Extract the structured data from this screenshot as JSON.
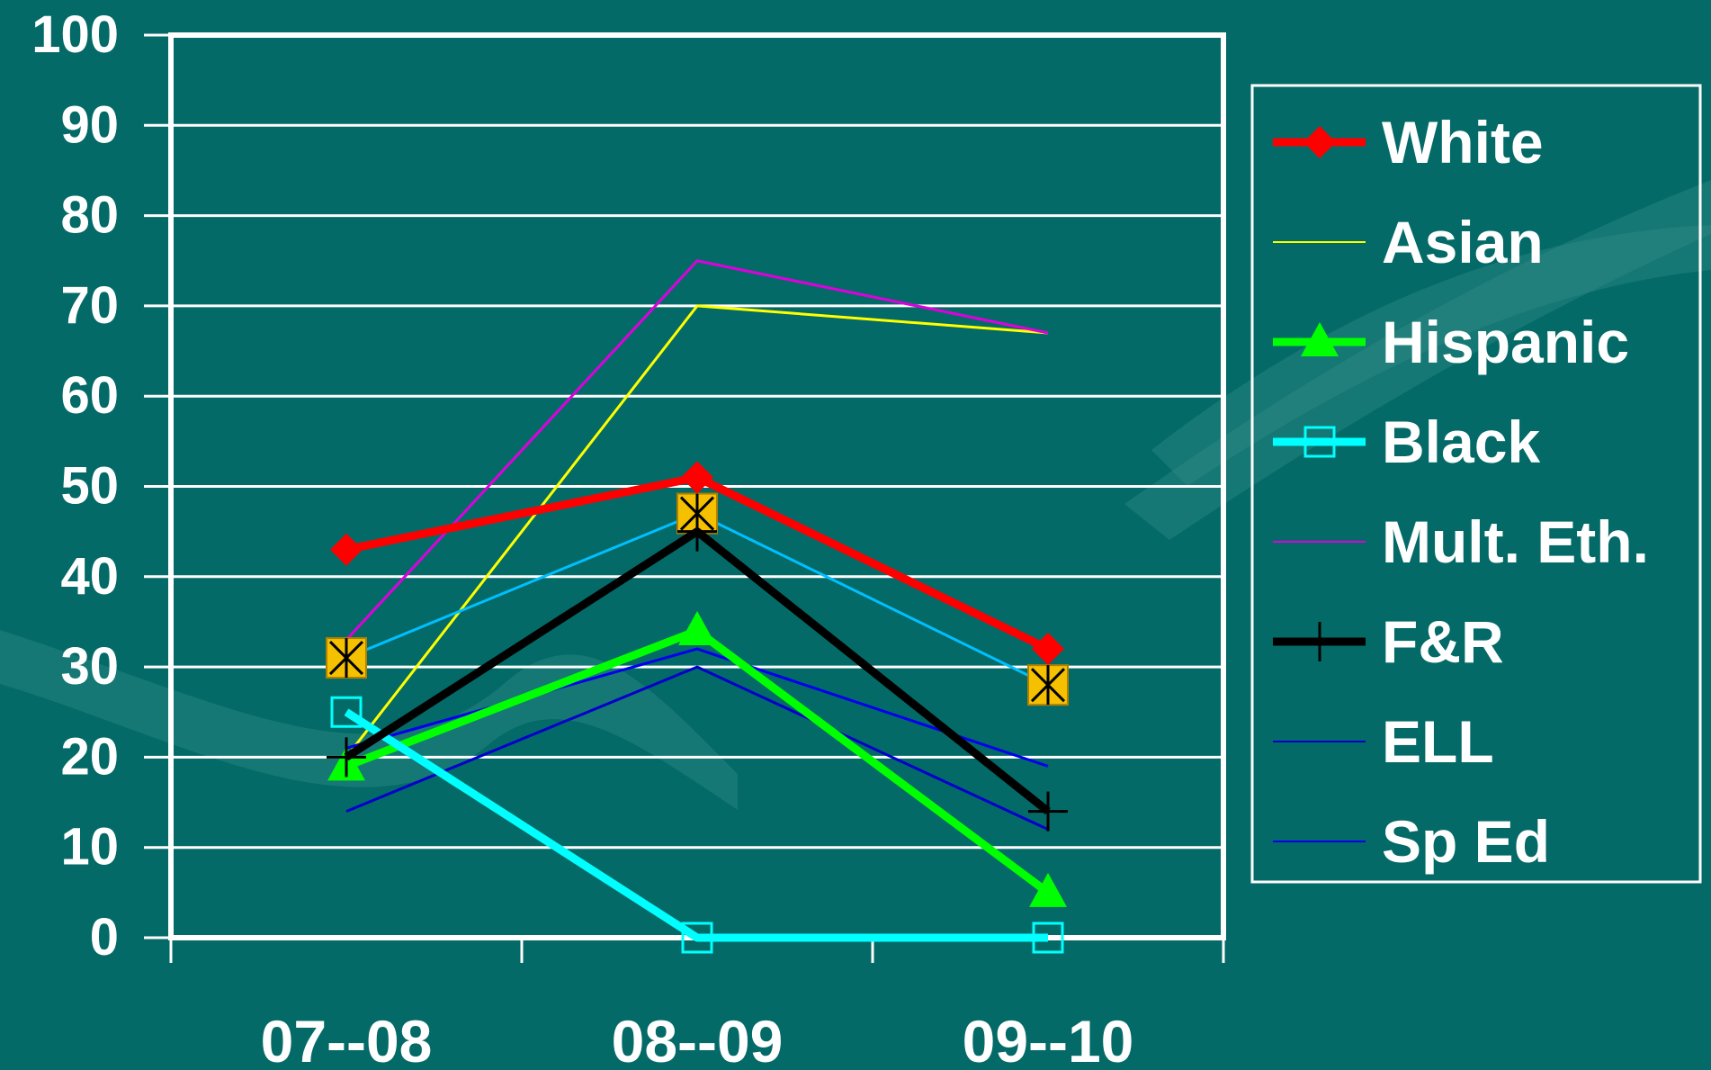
{
  "chart_data": {
    "type": "line",
    "title": "",
    "xlabel": "",
    "ylabel": "",
    "categories": [
      "07--08",
      "08--09",
      "09--10"
    ],
    "ylim": [
      0,
      100
    ],
    "yticks": [
      "0",
      "10",
      "20",
      "30",
      "40",
      "50",
      "60",
      "70",
      "80",
      "90",
      "100"
    ],
    "grid": true,
    "legend_position": "right",
    "series": [
      {
        "name": "White",
        "values": [
          43,
          51,
          32
        ],
        "color": "#ff0000",
        "marker": "diamond",
        "weight": "thick"
      },
      {
        "name": "Asian",
        "values": [
          20,
          70,
          67
        ],
        "color": "#ffff00",
        "marker": "none",
        "weight": "thin"
      },
      {
        "name": "Hispanic",
        "values": [
          19,
          34,
          5
        ],
        "color": "#00ff00",
        "marker": "triangle",
        "weight": "thick"
      },
      {
        "name": "Black",
        "values": [
          25,
          0,
          0
        ],
        "color": "#00ffff",
        "marker": "square-open",
        "weight": "thick"
      },
      {
        "name": "Mult. Eth.",
        "values": [
          33,
          75,
          67
        ],
        "color": "#dd00dd",
        "marker": "none",
        "weight": "thin"
      },
      {
        "name": "F&R",
        "values": [
          20,
          45,
          14
        ],
        "color": "#000000",
        "marker": "plus",
        "weight": "thick"
      },
      {
        "name": "ELL",
        "values": [
          14,
          30,
          12
        ],
        "color": "#0000cc",
        "marker": "none",
        "weight": "thin"
      },
      {
        "name": "Sp Ed",
        "values": [
          21,
          32,
          19
        ],
        "color": "#0000ee",
        "marker": "none",
        "weight": "thin"
      },
      {
        "name": "",
        "values": [
          31,
          47,
          28
        ],
        "color": "#00bfff",
        "marker": "x-square",
        "weight": "thin"
      }
    ]
  }
}
